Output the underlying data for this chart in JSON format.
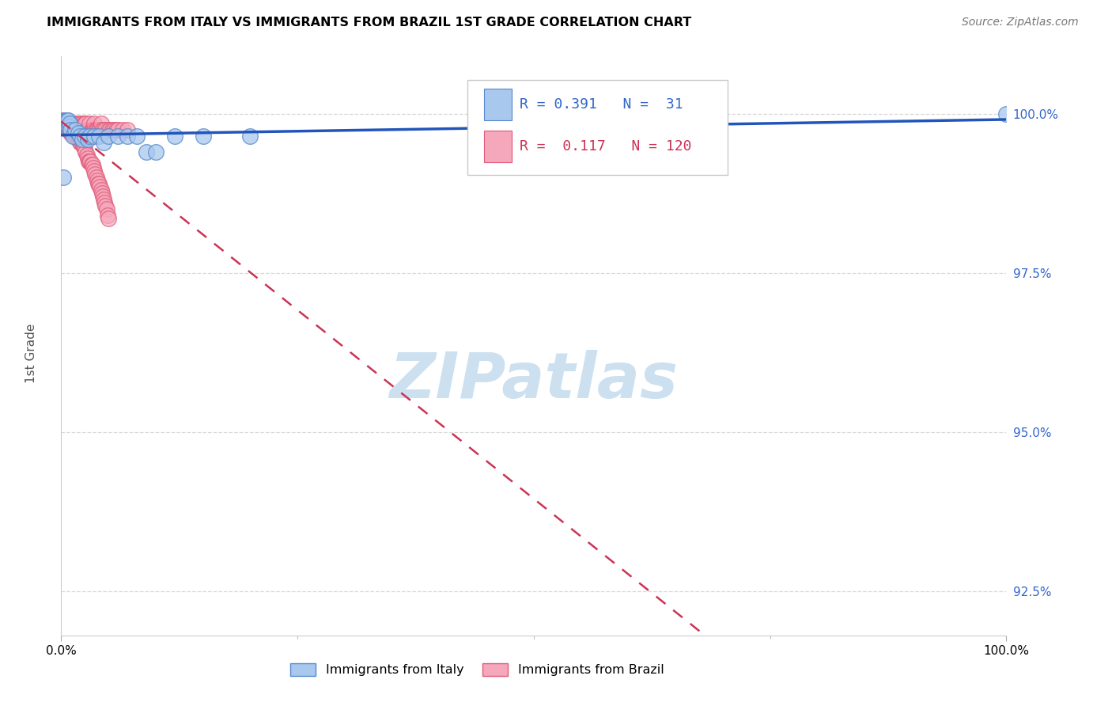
{
  "title": "IMMIGRANTS FROM ITALY VS IMMIGRANTS FROM BRAZIL 1ST GRADE CORRELATION CHART",
  "source": "Source: ZipAtlas.com",
  "ylabel": "1st Grade",
  "xmin": 0.0,
  "xmax": 100.0,
  "ymin": 91.8,
  "ymax": 100.9,
  "yticks": [
    92.5,
    95.0,
    97.5,
    100.0
  ],
  "ytick_labels": [
    "92.5%",
    "95.0%",
    "97.5%",
    "100.0%"
  ],
  "xtick_labels": [
    "0.0%",
    "100.0%"
  ],
  "xticks": [
    0.0,
    100.0
  ],
  "legend_italy_label": "Immigrants from Italy",
  "legend_brazil_label": "Immigrants from Brazil",
  "italy_color": "#a8c8ee",
  "brazil_color": "#f5a8bb",
  "italy_edge_color": "#5588cc",
  "brazil_edge_color": "#e05878",
  "trend_italy_color": "#2255bb",
  "trend_brazil_color": "#cc3355",
  "background_color": "#ffffff",
  "grid_color": "#d8d8d8",
  "watermark_text": "ZIPatlas",
  "watermark_color": "#cce0f0",
  "italy_x": [
    0.2,
    0.3,
    0.4,
    0.5,
    0.5,
    0.6,
    0.7,
    0.8,
    0.9,
    1.0,
    1.2,
    1.5,
    1.8,
    2.0,
    2.2,
    2.5,
    2.8,
    3.0,
    3.5,
    4.0,
    4.5,
    5.0,
    6.0,
    7.0,
    8.0,
    9.0,
    10.0,
    12.0,
    15.0,
    20.0,
    100.0
  ],
  "italy_y": [
    99.0,
    99.9,
    99.85,
    99.9,
    99.85,
    99.9,
    99.9,
    99.8,
    99.85,
    99.75,
    99.65,
    99.75,
    99.7,
    99.65,
    99.6,
    99.65,
    99.6,
    99.65,
    99.65,
    99.65,
    99.55,
    99.65,
    99.65,
    99.65,
    99.65,
    99.4,
    99.4,
    99.65,
    99.65,
    99.65,
    100.0
  ],
  "brazil_x": [
    0.1,
    0.1,
    0.2,
    0.2,
    0.2,
    0.3,
    0.3,
    0.3,
    0.4,
    0.4,
    0.4,
    0.5,
    0.5,
    0.5,
    0.5,
    0.6,
    0.6,
    0.6,
    0.7,
    0.7,
    0.8,
    0.8,
    0.9,
    0.9,
    1.0,
    1.0,
    1.1,
    1.2,
    1.3,
    1.3,
    1.4,
    1.5,
    1.5,
    1.6,
    1.6,
    1.7,
    1.8,
    1.9,
    2.0,
    2.0,
    2.2,
    2.2,
    2.3,
    2.5,
    2.5,
    2.6,
    2.8,
    3.0,
    3.0,
    3.2,
    3.3,
    3.4,
    3.5,
    3.6,
    3.7,
    3.8,
    4.0,
    4.1,
    4.2,
    4.3,
    4.5,
    4.7,
    5.0,
    5.2,
    5.4,
    5.6,
    5.8,
    6.0,
    6.5,
    7.0,
    0.1,
    0.2,
    0.3,
    0.4,
    0.5,
    0.6,
    0.7,
    0.8,
    0.9,
    1.0,
    1.1,
    1.2,
    1.3,
    1.4,
    1.5,
    1.6,
    1.7,
    1.8,
    1.9,
    2.0,
    2.1,
    2.2,
    2.3,
    2.4,
    2.5,
    2.6,
    2.7,
    2.8,
    2.9,
    3.0,
    3.1,
    3.2,
    3.3,
    3.4,
    3.5,
    3.6,
    3.7,
    3.8,
    3.9,
    4.0,
    4.1,
    4.2,
    4.3,
    4.4,
    4.5,
    4.6,
    4.7,
    4.8,
    4.9,
    5.0
  ],
  "brazil_y": [
    99.9,
    99.85,
    99.85,
    99.85,
    99.85,
    99.9,
    99.85,
    99.85,
    99.85,
    99.85,
    99.85,
    99.85,
    99.85,
    99.85,
    99.85,
    99.85,
    99.85,
    99.9,
    99.85,
    99.85,
    99.85,
    99.85,
    99.85,
    99.85,
    99.85,
    99.85,
    99.85,
    99.85,
    99.8,
    99.8,
    99.8,
    99.85,
    99.85,
    99.85,
    99.8,
    99.8,
    99.8,
    99.8,
    99.85,
    99.75,
    99.85,
    99.75,
    99.75,
    99.85,
    99.85,
    99.85,
    99.75,
    99.75,
    99.85,
    99.75,
    99.75,
    99.75,
    99.85,
    99.75,
    99.75,
    99.75,
    99.75,
    99.75,
    99.85,
    99.75,
    99.75,
    99.75,
    99.75,
    99.75,
    99.75,
    99.75,
    99.75,
    99.75,
    99.75,
    99.75,
    99.8,
    99.8,
    99.8,
    99.8,
    99.8,
    99.8,
    99.75,
    99.75,
    99.75,
    99.7,
    99.7,
    99.7,
    99.7,
    99.65,
    99.65,
    99.65,
    99.65,
    99.6,
    99.6,
    99.55,
    99.55,
    99.55,
    99.5,
    99.5,
    99.45,
    99.4,
    99.35,
    99.3,
    99.25,
    99.25,
    99.25,
    99.2,
    99.2,
    99.15,
    99.1,
    99.05,
    99.0,
    98.95,
    98.9,
    98.9,
    98.85,
    98.8,
    98.75,
    98.7,
    98.65,
    98.6,
    98.55,
    98.5,
    98.4,
    98.35
  ]
}
